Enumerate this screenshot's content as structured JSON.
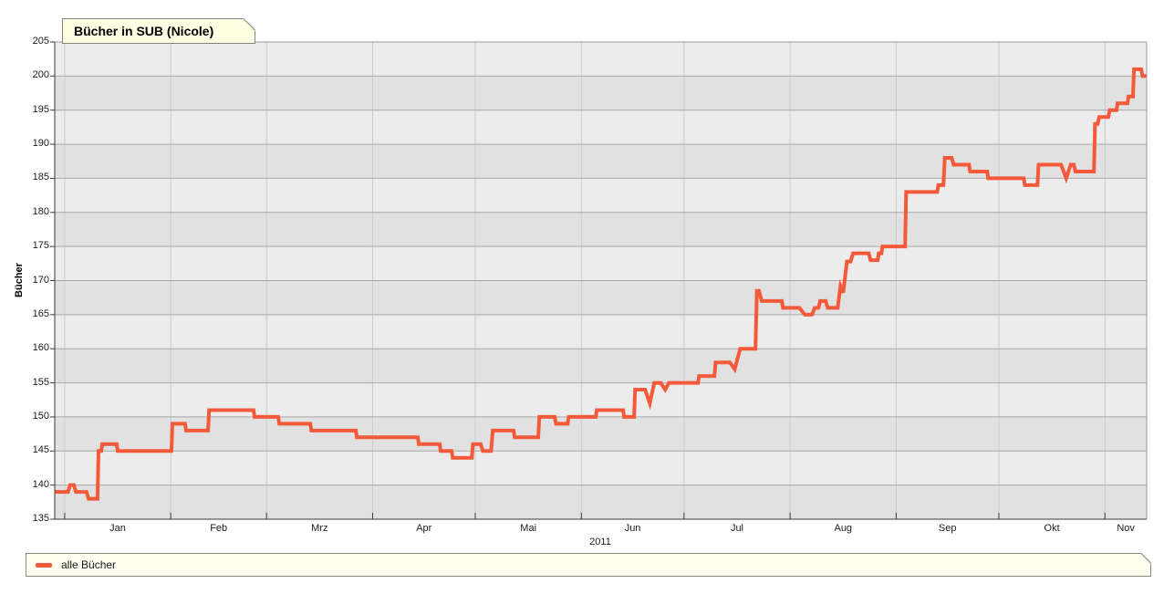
{
  "chart_data": {
    "type": "line",
    "title": "Bücher in SUB (Nicole)",
    "ylabel": "Bücher",
    "xlabel": "",
    "year_label": "2011",
    "ylim": [
      135,
      205
    ],
    "y_tick_step": 5,
    "y_ticks": [
      135,
      140,
      145,
      150,
      155,
      160,
      165,
      170,
      175,
      180,
      185,
      190,
      195,
      200,
      205
    ],
    "grid": true,
    "legend_position": "bottom",
    "x_axis": {
      "unit": "days",
      "total_days": 319.1,
      "month_ticks": [
        2.9,
        33.9,
        61.9,
        92.9,
        122.9,
        153.9,
        183.9,
        214.9,
        245.9,
        275.9,
        306.9
      ],
      "month_labels": [
        "Jan",
        "Feb",
        "Mrz",
        "Apr",
        "Mai",
        "Jun",
        "Jul",
        "Aug",
        "Sep",
        "Okt",
        "Nov"
      ]
    },
    "series": [
      {
        "name": "alle Bücher",
        "color": "#f4593a",
        "points": [
          [
            0,
            139
          ],
          [
            3.9,
            139
          ],
          [
            4.5,
            140
          ],
          [
            5.6,
            140
          ],
          [
            6.2,
            139
          ],
          [
            9.3,
            139
          ],
          [
            9.9,
            138
          ],
          [
            12.5,
            138
          ],
          [
            12.8,
            145
          ],
          [
            13.6,
            145
          ],
          [
            13.9,
            146
          ],
          [
            18.1,
            146
          ],
          [
            18.4,
            145
          ],
          [
            34.1,
            145
          ],
          [
            34.4,
            149
          ],
          [
            38.1,
            149
          ],
          [
            38.4,
            148
          ],
          [
            44.8,
            148
          ],
          [
            45.1,
            151
          ],
          [
            58.1,
            151
          ],
          [
            58.4,
            150
          ],
          [
            65.3,
            150
          ],
          [
            65.6,
            149
          ],
          [
            74.7,
            149
          ],
          [
            75.0,
            148
          ],
          [
            88.0,
            148
          ],
          [
            88.3,
            147
          ],
          [
            106.1,
            147
          ],
          [
            106.4,
            146
          ],
          [
            112.5,
            146
          ],
          [
            112.8,
            145
          ],
          [
            116.0,
            145
          ],
          [
            116.3,
            144
          ],
          [
            121.9,
            144
          ],
          [
            122.2,
            146
          ],
          [
            124.5,
            146
          ],
          [
            125.1,
            145
          ],
          [
            127.5,
            145
          ],
          [
            128.0,
            148
          ],
          [
            134.1,
            148
          ],
          [
            134.4,
            147
          ],
          [
            141.3,
            147
          ],
          [
            141.6,
            150
          ],
          [
            146.1,
            150
          ],
          [
            146.5,
            149
          ],
          [
            149.9,
            149
          ],
          [
            150.2,
            150
          ],
          [
            158.1,
            150
          ],
          [
            158.4,
            151
          ],
          [
            166.1,
            151
          ],
          [
            166.4,
            150
          ],
          [
            169.3,
            150
          ],
          [
            169.6,
            154
          ],
          [
            172.5,
            154
          ],
          [
            173.9,
            152
          ],
          [
            175.2,
            155
          ],
          [
            177.1,
            155
          ],
          [
            178.4,
            154
          ],
          [
            179.5,
            155
          ],
          [
            188.0,
            155
          ],
          [
            188.3,
            156
          ],
          [
            192.8,
            156
          ],
          [
            193.1,
            158
          ],
          [
            197.3,
            158
          ],
          [
            198.7,
            157
          ],
          [
            200.3,
            160
          ],
          [
            204.8,
            160
          ],
          [
            205.2,
            168.5
          ],
          [
            205.8,
            168.5
          ],
          [
            206.6,
            167
          ],
          [
            212.5,
            167
          ],
          [
            212.8,
            166
          ],
          [
            217.6,
            166
          ],
          [
            219.2,
            165
          ],
          [
            221.3,
            165
          ],
          [
            222.1,
            166
          ],
          [
            223.2,
            166
          ],
          [
            223.7,
            167
          ],
          [
            225.3,
            167
          ],
          [
            225.9,
            166
          ],
          [
            228.8,
            166
          ],
          [
            229.6,
            169.2
          ],
          [
            230.4,
            168.2
          ],
          [
            231.5,
            172.8
          ],
          [
            232.6,
            172.8
          ],
          [
            233.3,
            174
          ],
          [
            237.9,
            174
          ],
          [
            238.4,
            173
          ],
          [
            240.5,
            173
          ],
          [
            240.8,
            174
          ],
          [
            241.6,
            174
          ],
          [
            241.9,
            175
          ],
          [
            248.5,
            175
          ],
          [
            248.8,
            183
          ],
          [
            257.9,
            183
          ],
          [
            258.2,
            184
          ],
          [
            259.7,
            184
          ],
          [
            260.1,
            188
          ],
          [
            262.1,
            188
          ],
          [
            262.7,
            187
          ],
          [
            267.2,
            187
          ],
          [
            267.5,
            186
          ],
          [
            272.5,
            186
          ],
          [
            272.8,
            185
          ],
          [
            283.2,
            185
          ],
          [
            283.5,
            184
          ],
          [
            287.2,
            184
          ],
          [
            287.5,
            187
          ],
          [
            294.1,
            187
          ],
          [
            295.6,
            185
          ],
          [
            296.9,
            187
          ],
          [
            297.8,
            187
          ],
          [
            298.3,
            186
          ],
          [
            303.7,
            186
          ],
          [
            304.0,
            193
          ],
          [
            304.8,
            193
          ],
          [
            305.2,
            194
          ],
          [
            307.9,
            194
          ],
          [
            308.3,
            195
          ],
          [
            310.3,
            195
          ],
          [
            310.6,
            196
          ],
          [
            313.5,
            196
          ],
          [
            313.8,
            197
          ],
          [
            315.1,
            197
          ],
          [
            315.4,
            201
          ],
          [
            317.5,
            201
          ],
          [
            317.9,
            200
          ],
          [
            319.1,
            200
          ]
        ]
      }
    ],
    "colors": {
      "line": "#f4593a",
      "band_light": "#ececec",
      "band_dark": "#e1e1e1",
      "grid_horizontal": "#a8a8a8",
      "grid_vertical": "#cbcbcb",
      "axis_dark": "#3a3a3a",
      "axis_light": "#999999",
      "tab_background": "#ffffe4",
      "legend_background": "#fffff0",
      "panel_border": "#8a8a82"
    }
  }
}
